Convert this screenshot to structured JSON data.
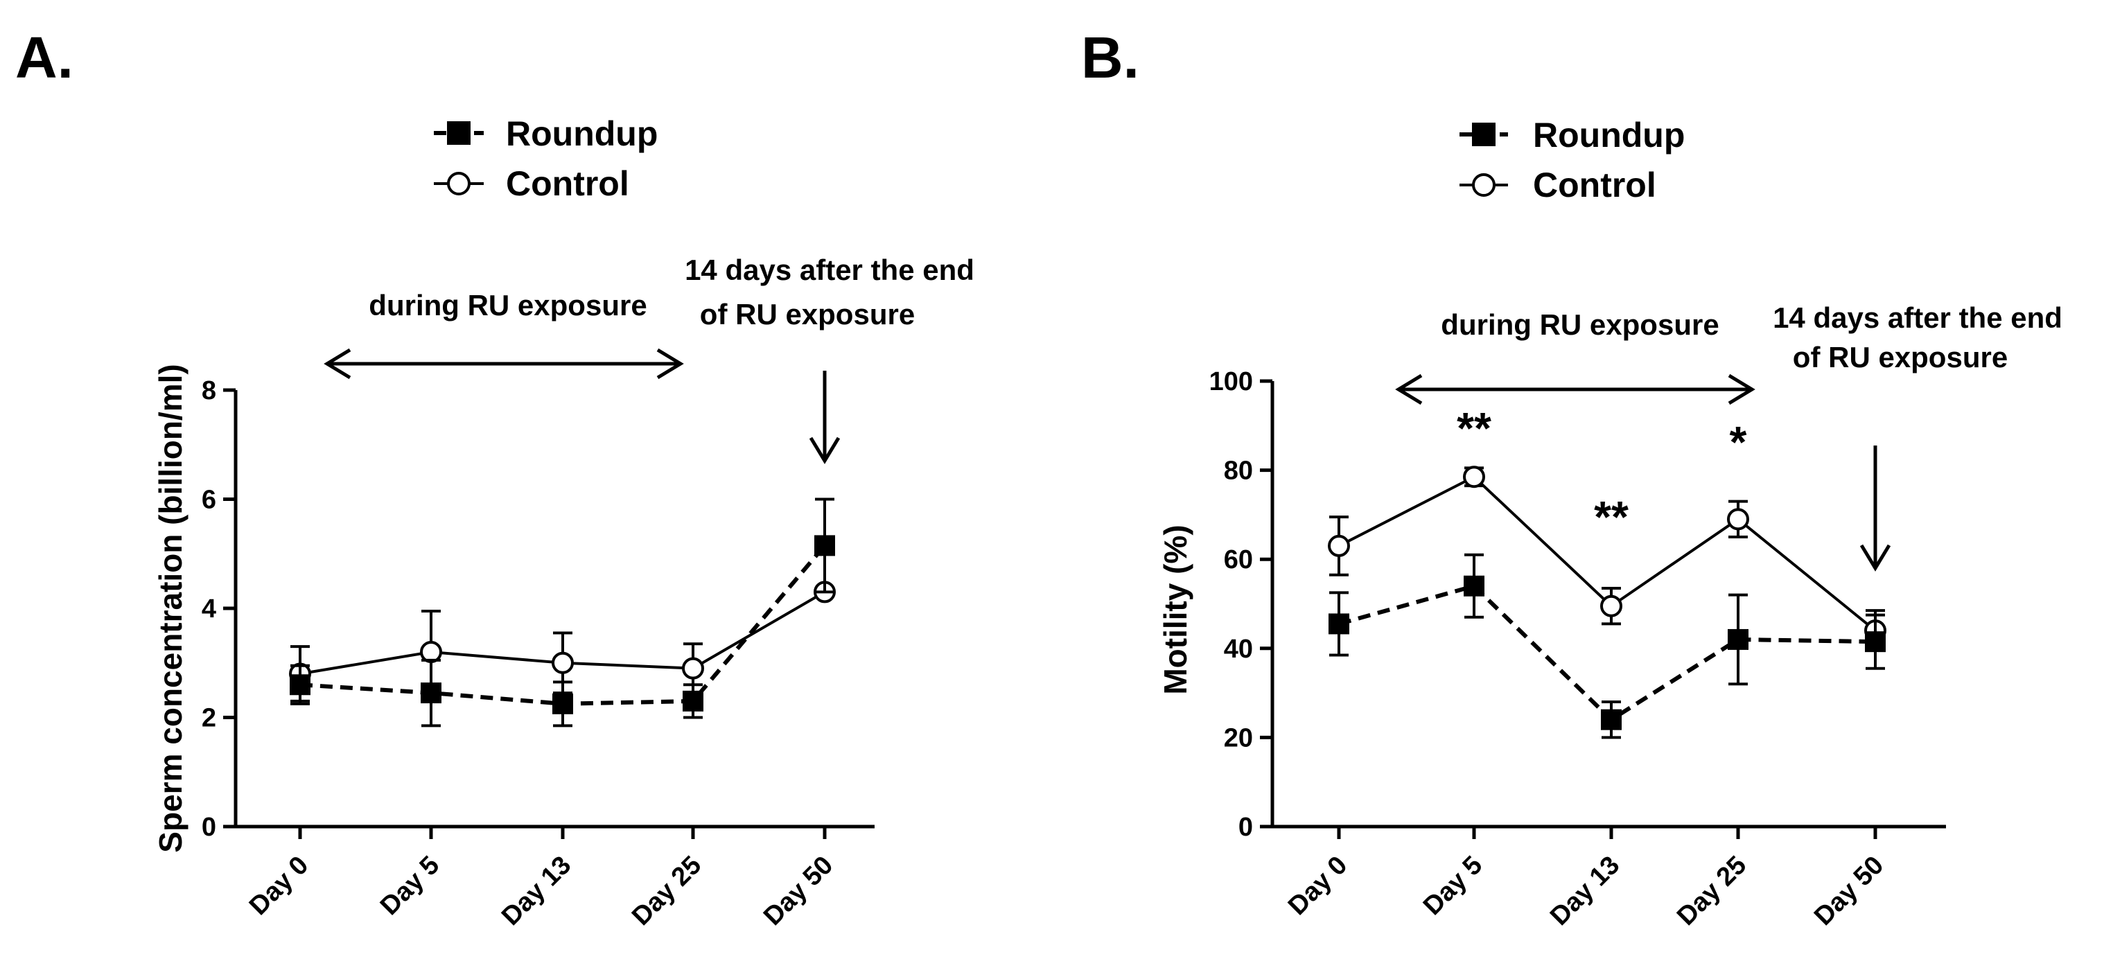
{
  "chart_data": [
    {
      "type": "line",
      "panel_label": "A.",
      "categories": [
        "Day 0",
        "Day 5",
        "Day 13",
        "Day 25",
        "Day 50"
      ],
      "ylabel": "Sperm concentration (billion/ml)",
      "xlabel": "",
      "ylim": [
        0,
        8
      ],
      "yticks": [
        "0",
        "2",
        "4",
        "6",
        "8"
      ],
      "legend": [
        "Roundup",
        "Control"
      ],
      "series": [
        {
          "name": "Roundup",
          "marker": "filled-square",
          "line": "dashed",
          "values": [
            2.6,
            2.45,
            2.25,
            2.3,
            5.15
          ],
          "errors": [
            0.35,
            0.6,
            0.4,
            0.3,
            0.85
          ]
        },
        {
          "name": "Control",
          "marker": "open-circle",
          "line": "solid",
          "values": [
            2.8,
            3.2,
            3.0,
            2.9,
            4.3
          ],
          "errors": [
            0.5,
            0.75,
            0.55,
            0.45,
            0.0
          ]
        }
      ],
      "annotations": {
        "bracket_label": "during RU exposure",
        "after_label_line1": "14 days after the end",
        "after_label_line2": "of RU exposure",
        "significance": []
      }
    },
    {
      "type": "line",
      "panel_label": "B.",
      "categories": [
        "Day 0",
        "Day 5",
        "Day 13",
        "Day 25",
        "Day 50"
      ],
      "ylabel": "Motility  (%)",
      "xlabel": "",
      "ylim": [
        0,
        100
      ],
      "yticks": [
        "0",
        "20",
        "40",
        "60",
        "80",
        "100"
      ],
      "legend": [
        "Roundup",
        "Control"
      ],
      "series": [
        {
          "name": "Roundup",
          "marker": "filled-square",
          "line": "dashed",
          "values": [
            45.5,
            54,
            24,
            42,
            41.5
          ],
          "errors": [
            7,
            7,
            4,
            10,
            6
          ]
        },
        {
          "name": "Control",
          "marker": "open-circle",
          "line": "solid",
          "values": [
            63,
            78.5,
            49.5,
            69,
            44
          ],
          "errors": [
            6.5,
            2,
            4,
            4,
            4.5
          ]
        }
      ],
      "annotations": {
        "bracket_label": "during RU exposure",
        "after_label_line1": "14 days after the end",
        "after_label_line2": "of RU exposure",
        "significance": [
          {
            "category": "Day 5",
            "text": "**"
          },
          {
            "category": "Day 13",
            "text": "**"
          },
          {
            "category": "Day 25",
            "text": "*"
          }
        ]
      }
    }
  ]
}
